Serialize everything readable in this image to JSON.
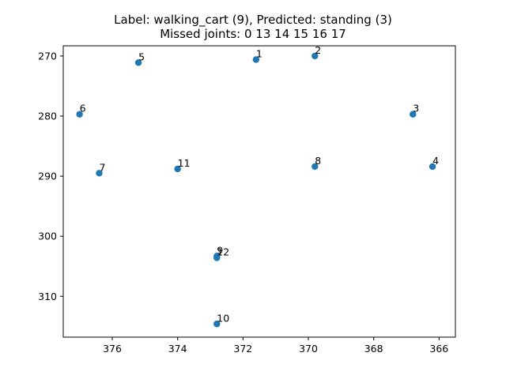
{
  "chart_data": {
    "type": "scatter",
    "title_lines": [
      "Label: walking_cart (9), Predicted: standing (3)",
      "Missed joints: 0 13 14 15 16 17"
    ],
    "xlabel": "",
    "ylabel": "",
    "x_inverted": true,
    "y_inverted": true,
    "xlim": [
      377.5,
      365.5
    ],
    "ylim": [
      316.8,
      268.3
    ],
    "x_ticks": [
      376,
      374,
      372,
      370,
      368,
      366
    ],
    "y_ticks": [
      270,
      280,
      290,
      300,
      310
    ],
    "grid": false,
    "point_color": "#1f77b4",
    "points": [
      {
        "label": "1",
        "x": 371.6,
        "y": 270.6
      },
      {
        "label": "2",
        "x": 369.8,
        "y": 270.0
      },
      {
        "label": "3",
        "x": 366.8,
        "y": 279.7
      },
      {
        "label": "4",
        "x": 366.2,
        "y": 288.4
      },
      {
        "label": "5",
        "x": 375.2,
        "y": 271.1
      },
      {
        "label": "6",
        "x": 377.0,
        "y": 279.7
      },
      {
        "label": "7",
        "x": 376.4,
        "y": 289.5
      },
      {
        "label": "8",
        "x": 369.8,
        "y": 288.4
      },
      {
        "label": "9",
        "x": 372.8,
        "y": 303.3
      },
      {
        "label": "10",
        "x": 372.8,
        "y": 314.6
      },
      {
        "label": "11",
        "x": 374.0,
        "y": 288.8
      },
      {
        "label": "12",
        "x": 372.8,
        "y": 303.6
      }
    ]
  }
}
